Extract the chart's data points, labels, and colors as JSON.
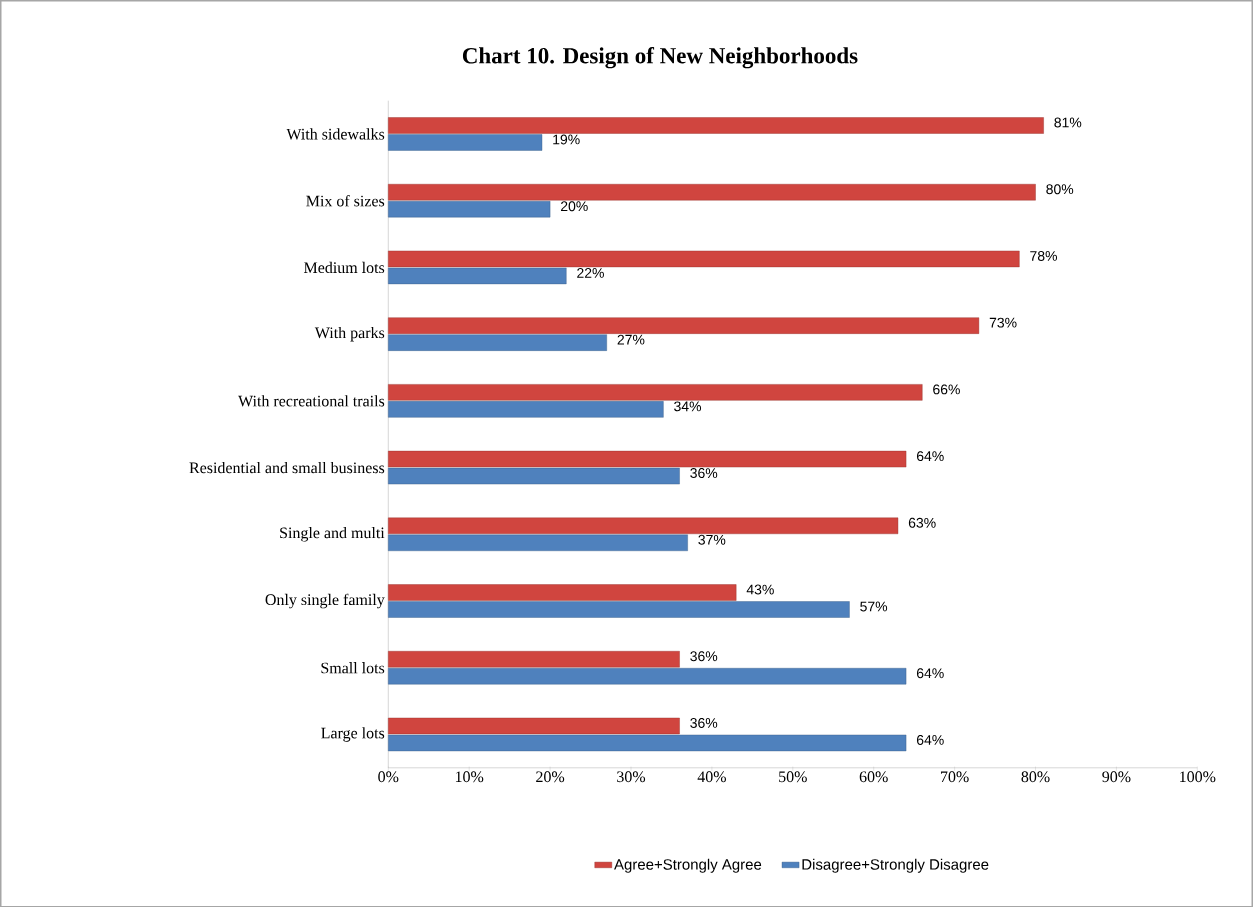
{
  "chart_data": {
    "type": "bar",
    "orientation": "horizontal",
    "title": "Chart 10.  Design of New Neighborhoods",
    "categories": [
      "With sidewalks",
      "Mix of sizes",
      "Medium lots",
      "With parks",
      "With recreational trails",
      "Residential and small business",
      "Single and multi",
      "Only single family",
      "Small lots",
      "Large lots"
    ],
    "series": [
      {
        "name": "Agree+Strongly Agree",
        "color": "#d0453f",
        "values": [
          81,
          80,
          78,
          73,
          66,
          64,
          63,
          43,
          36,
          36
        ],
        "value_labels": [
          "81%",
          "80%",
          "78%",
          "73%",
          "66%",
          "64%",
          "63%",
          "43%",
          "36%",
          "36%"
        ]
      },
      {
        "name": "Disagree+Strongly Disagree",
        "color": "#4f81bd",
        "values": [
          19,
          20,
          22,
          27,
          34,
          36,
          37,
          57,
          64,
          64
        ],
        "value_labels": [
          "19%",
          "20%",
          "22%",
          "27%",
          "34%",
          "36%",
          "37%",
          "57%",
          "64%",
          "64%"
        ]
      }
    ],
    "xlim": [
      0,
      100
    ],
    "xticks": [
      {
        "value": 0,
        "label": "0%"
      },
      {
        "value": 10,
        "label": "10%"
      },
      {
        "value": 20,
        "label": "20%"
      },
      {
        "value": 30,
        "label": "30%"
      },
      {
        "value": 40,
        "label": "40%"
      },
      {
        "value": 50,
        "label": "50%"
      },
      {
        "value": 60,
        "label": "60%"
      },
      {
        "value": 70,
        "label": "70%"
      },
      {
        "value": 80,
        "label": "80%"
      },
      {
        "value": 90,
        "label": "90%"
      },
      {
        "value": 100,
        "label": "100%"
      }
    ],
    "legend": "bottom"
  }
}
